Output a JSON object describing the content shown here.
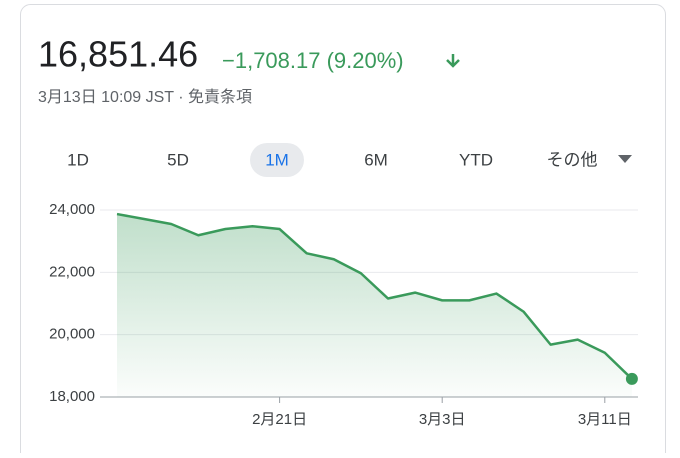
{
  "header": {
    "price": "16,851.46",
    "change": "−1,708.17 (9.20%)",
    "timestamp": "3月13日 10:09 JST · 免責条項"
  },
  "tabs": [
    "1D",
    "5D",
    "1M",
    "6M",
    "YTD",
    "その他"
  ],
  "chart_data": {
    "type": "area",
    "categories": [
      null,
      null,
      null,
      null,
      null,
      null,
      "2月21日",
      null,
      null,
      null,
      null,
      null,
      "3月3日",
      null,
      null,
      null,
      null,
      null,
      "3月11日",
      null
    ],
    "series": [
      {
        "name": "Price",
        "color": "#3a9a5b",
        "values": [
          23870,
          23710,
          23550,
          23190,
          23390,
          23480,
          23390,
          22610,
          22420,
          21970,
          21160,
          21350,
          21100,
          21100,
          21320,
          20740,
          19680,
          19840,
          19420,
          18580
        ]
      }
    ],
    "ylim": [
      18000,
      24000
    ],
    "yticks": [
      {
        "value": 18000,
        "label": "18,000"
      },
      {
        "value": 20000,
        "label": "20,000"
      },
      {
        "value": 22000,
        "label": "22,000"
      },
      {
        "value": 24000,
        "label": "24,000"
      }
    ],
    "grid": true
  }
}
